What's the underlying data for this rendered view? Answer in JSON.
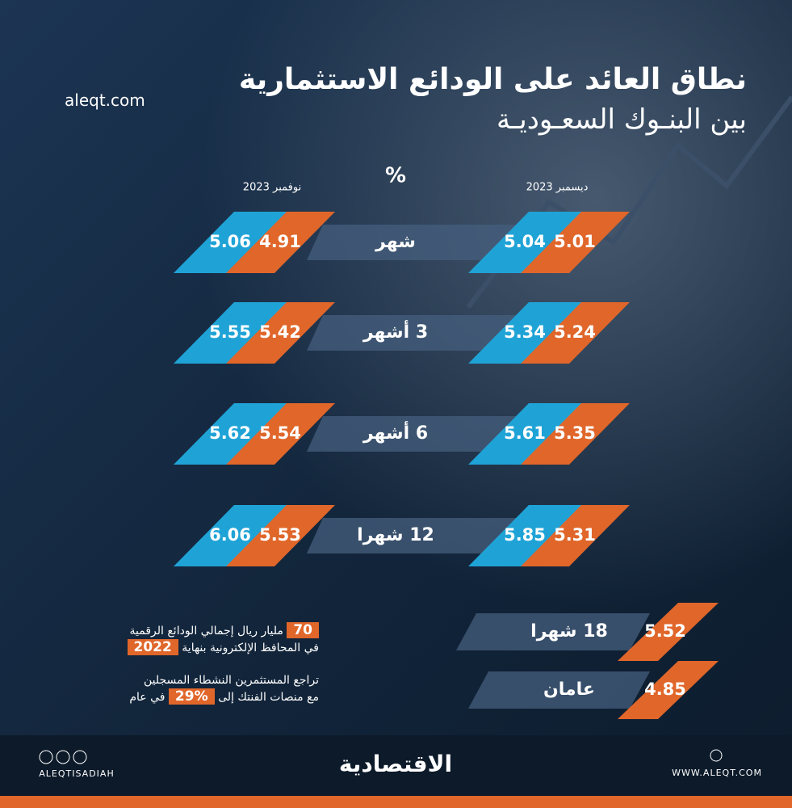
{
  "header": {
    "site": "aleqt.com",
    "title_line1": "نطاق العائد على الودائع الاستثمارية",
    "title_line2": "بين البنـوك السعـوديـة",
    "unit": "%",
    "col_right": "ديسمبر 2023",
    "col_left": "نوفمبر 2023"
  },
  "rows": [
    {
      "label": "شهر",
      "december": [
        5.04,
        5.01
      ],
      "november": [
        5.06,
        4.91
      ]
    },
    {
      "label": "3 أشهر",
      "december": [
        5.34,
        5.24
      ],
      "november": [
        5.55,
        5.42
      ]
    },
    {
      "label": "6 أشهر",
      "december": [
        5.61,
        5.35
      ],
      "november": [
        5.62,
        5.54
      ]
    },
    {
      "label": "12 شهرا",
      "december": [
        5.85,
        5.31
      ],
      "november": [
        6.06,
        5.53
      ]
    }
  ],
  "extra_rows": [
    {
      "label": "18 شهرا",
      "value": 5.52
    },
    {
      "label": "عامان",
      "value": 4.85
    }
  ],
  "notes": [
    {
      "number": "70",
      "line1": "مليار ريال إجمالي الودائع الرقمية",
      "line2": "في المحافظ الإلكترونية بنهاية",
      "year": "2022"
    },
    {
      "line1": "تراجع المستثمرين النشطاء المسجلين",
      "line2": "مع منصات الفنتك إلى",
      "percent": "29%",
      "tail": "في عام"
    }
  ],
  "footer": {
    "handle": "ALEQTISADIAH",
    "logo": "الاقتصادية",
    "website": "WWW.ALEQT.COM"
  }
}
